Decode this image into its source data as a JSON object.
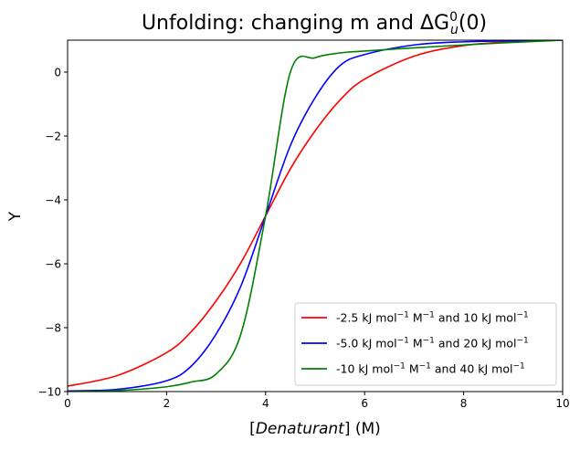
{
  "chart_data": {
    "type": "line",
    "title_main": "Unfolding: changing m and ΔG",
    "title_sup": "0",
    "title_sub": "u",
    "title_tail": "(0)",
    "xlabel_open": "[",
    "xlabel_italic": "Denaturant",
    "xlabel_close": "] (M)",
    "ylabel": "Y",
    "xlim": [
      0,
      10
    ],
    "ylim": [
      -10,
      1
    ],
    "xticks": [
      "0",
      "2",
      "4",
      "6",
      "8",
      "10"
    ],
    "yticks": [
      "−10",
      "−8",
      "−6",
      "−4",
      "−2",
      "0"
    ],
    "grid": false,
    "legend_position": "lower-right",
    "x": [
      0,
      1,
      2,
      2.5,
      3,
      3.5,
      4,
      4.5,
      5,
      5.5,
      6,
      7,
      8,
      9,
      10
    ],
    "series": [
      {
        "name_parts": [
          "-2.5 kJ mol",
          "−1",
          " M",
          "−1",
          " and 10 kJ mol",
          "−1"
        ],
        "color": "#ff0000",
        "values": [
          -9.83,
          -9.5,
          -8.78,
          -8.12,
          -7.16,
          -5.97,
          -4.5,
          -3.03,
          -1.84,
          -0.88,
          -0.22,
          0.5,
          0.83,
          0.95,
          1.0
        ]
      },
      {
        "name_parts": [
          "-5.0 kJ mol",
          "−1",
          " M",
          "−1",
          " and 20 kJ mol",
          "−1"
        ],
        "color": "#0000ff",
        "values": [
          -9.98,
          -9.93,
          -9.66,
          -9.2,
          -8.2,
          -6.7,
          -4.5,
          -2.3,
          -0.8,
          0.2,
          0.55,
          0.85,
          0.95,
          0.98,
          1.0
        ]
      },
      {
        "name_parts": [
          "-10 kJ mol",
          "−1",
          " M",
          "−1",
          " and 40 kJ mol",
          "−1"
        ],
        "color": "#008000",
        "values": [
          -10.0,
          -9.97,
          -9.85,
          -9.7,
          -9.45,
          -8.2,
          -4.5,
          0.0,
          0.45,
          0.6,
          0.66,
          0.76,
          0.85,
          0.93,
          1.0
        ]
      }
    ]
  }
}
